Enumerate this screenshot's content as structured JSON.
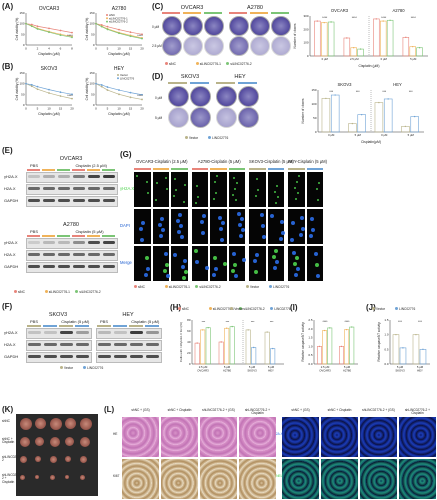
{
  "panels": {
    "A": "(A)",
    "B": "(B)",
    "C": "(C)",
    "D": "(D)",
    "E": "(E)",
    "F": "(F)",
    "G": "(G)",
    "H": "(H)",
    "I": "(I)",
    "J": "(J)",
    "K": "(K)",
    "L": "(L)"
  },
  "A": {
    "charts": [
      {
        "title": "OVCAR3",
        "ylabel": "Cell viability (%)",
        "xlabel": "Cisplatin (μM)",
        "xticks": [
          "0",
          "2",
          "4",
          "6",
          "8"
        ],
        "yticks": [
          "0",
          "50",
          "100",
          "150"
        ]
      },
      {
        "title": "A2780",
        "ylabel": "Cell viability (%)",
        "xlabel": "Cisplatin (μM)",
        "xticks": [
          "0",
          "5",
          "10",
          "15",
          "20"
        ],
        "yticks": [
          "0",
          "50",
          "100",
          "150"
        ]
      }
    ],
    "legend": [
      "siNC",
      "siLINC02776-1",
      "siLINC02776-2"
    ]
  },
  "B": {
    "charts": [
      {
        "title": "SKOV3",
        "ylabel": "Cell viability (%)",
        "xlabel": "Cisplatin (μM)",
        "xticks": [
          "0",
          "5",
          "10",
          "15",
          "20"
        ],
        "yticks": [
          "0",
          "50",
          "100",
          "150"
        ]
      },
      {
        "title": "HEY",
        "ylabel": "Cell viability (%)",
        "xlabel": "Cisplatin (μM)",
        "xticks": [
          "0",
          "5",
          "10",
          "15",
          "20"
        ],
        "yticks": [
          "0",
          "50",
          "100",
          "150"
        ]
      }
    ],
    "legend": [
      "Vector",
      "LINC02776"
    ]
  },
  "C": {
    "titles": [
      "OVCAR3",
      "A2780"
    ],
    "rowlabels": [
      "0 μM",
      "2.5 μM",
      "0 μM",
      "5 μM"
    ],
    "legend": [
      "siNC",
      "siLINC02776-1",
      "siLINC02776-2"
    ],
    "chart": {
      "title1": "OVCAR3",
      "title2": "A2780",
      "ylabel": "Number of clones",
      "xlabel": "Cisplatin (μM)",
      "xticks": [
        "0 μM",
        "2.5 μM",
        "0 μM",
        "5 μM"
      ],
      "yticks": [
        "0",
        "100",
        "200",
        "300"
      ]
    }
  },
  "D": {
    "titles": [
      "SKOV3",
      "HEY"
    ],
    "rowlabels": [
      "0 μM",
      "5 μM"
    ],
    "legend": [
      "Vector",
      "LINC02776"
    ],
    "chart": {
      "title1": "SKOV3",
      "title2": "HEY",
      "ylabel": "Number of clones",
      "xlabel": "Cisplatin(μM)",
      "xticks": [
        "0 μM",
        "5 μM",
        "0 μM",
        "5 μM"
      ],
      "yticks": [
        "0",
        "50",
        "100",
        "150"
      ]
    }
  },
  "E": {
    "top": {
      "title": "OVCAR3",
      "pbs": "PBS",
      "cis": "Cisplatin (2.5 μM)"
    },
    "bottom": {
      "title": "A2780",
      "pbs": "PBS",
      "cis": "Cisplatin (5 μM)"
    },
    "rows": [
      "γH2A.X",
      "H2A.X",
      "GAPDH"
    ],
    "legend": [
      "siNC",
      "siLINC02776-1",
      "siLINC02776-2"
    ]
  },
  "F": {
    "titles": [
      "SKOV3",
      "HEY"
    ],
    "pbs": "PBS",
    "cis": "Cisplatin (5 μM)",
    "rows": [
      "γH2A.X",
      "H2A.X",
      "GAPDH"
    ],
    "legend": [
      "Vector",
      "LINC02776"
    ]
  },
  "G": {
    "titles": [
      "OVCAR3-Cisplatin (2.5 μM)",
      "A2780-Cisplatin (5 μM)",
      "SKOV3-Cisplatin (5 μM)",
      "HEY-Cisplatin (5 μM)"
    ],
    "rows": [
      "γH2A.X",
      "DAPI",
      "Merge"
    ],
    "legend1": [
      "siNC",
      "siLINC02776-1",
      "siLINC02776-2"
    ],
    "legend2": [
      "Vector",
      "LINC02776"
    ]
  },
  "H": {
    "legend": [
      "siNC",
      "siLINC02776-1",
      "siLINC02776-2",
      "Vector",
      "LINC02776"
    ],
    "ylabel": "Cells with >10γH2A.X foci (%)",
    "xticks": [
      "2.5 μM OVCAR3",
      "5 μM A2780",
      "5 μM SKOV3",
      "5 μM HEY"
    ],
    "yticks": [
      "0",
      "20",
      "40",
      "60",
      "80"
    ]
  },
  "I": {
    "ylabel": "Relative caspase3/7 activity",
    "xticks": [
      "2.5 μM OVCAR3",
      "5 μM A2780"
    ],
    "yticks": [
      "0.0",
      "0.5",
      "1.0",
      "1.5",
      "2.0",
      "2.5"
    ]
  },
  "J": {
    "legend": [
      "Vector",
      "LINC02776"
    ],
    "ylabel": "Relative caspase3/7 activity",
    "xticks": [
      "5 μM SKOV3",
      "5 μM HEY"
    ],
    "yticks": [
      "0.0",
      "0.5",
      "1.0",
      "1.5"
    ]
  },
  "K": {
    "rows": [
      "shNC",
      "shNC + Cisplatin",
      "shLINC02776-2",
      "shLINC02776-2 + Cisplatin"
    ]
  },
  "L": {
    "cols": [
      "shNC + (GS)",
      "shNC + Cisplatin",
      "shLINC02776-2 + (GS)",
      "shLINC02776-2 + Cisplatin"
    ],
    "rows_left": [
      "HE",
      "Ki67"
    ],
    "rows_right": [
      "γH2A.X/DAPI",
      "TUNEL/DAPI"
    ]
  },
  "colors": {
    "siNC": "#e8847a",
    "si1": "#f0b35a",
    "si2": "#7cc576",
    "vector": "#b9b38a",
    "linc": "#6fa3d6",
    "green": "#4cd24c",
    "blue": "#1f5fd0"
  },
  "sig": {
    "s3": "***",
    "s4": "****",
    "s2": "**",
    "s1": "*"
  },
  "chart_data": [
    {
      "type": "line",
      "title": "OVCAR3",
      "xlabel": "Cisplatin (μM)",
      "ylabel": "Cell viability (%)",
      "x": [
        0,
        1,
        2,
        4,
        6,
        8
      ],
      "ylim": [
        0,
        150
      ],
      "series": [
        {
          "name": "siNC",
          "values": [
            100,
            96,
            88,
            78,
            68,
            58
          ]
        },
        {
          "name": "siLINC02776-1",
          "values": [
            100,
            90,
            78,
            63,
            50,
            40
          ]
        },
        {
          "name": "siLINC02776-2",
          "values": [
            100,
            88,
            75,
            60,
            46,
            36
          ]
        }
      ]
    },
    {
      "type": "line",
      "title": "A2780",
      "xlabel": "Cisplatin (μM)",
      "ylabel": "Cell viability (%)",
      "x": [
        0,
        2.5,
        5,
        10,
        15,
        20
      ],
      "ylim": [
        0,
        150
      ],
      "series": [
        {
          "name": "siNC",
          "values": [
            100,
            94,
            86,
            72,
            60,
            50
          ]
        },
        {
          "name": "siLINC02776-1",
          "values": [
            100,
            88,
            76,
            58,
            45,
            33
          ]
        },
        {
          "name": "siLINC02776-2",
          "values": [
            100,
            86,
            73,
            55,
            41,
            30
          ]
        }
      ]
    },
    {
      "type": "line",
      "title": "SKOV3",
      "xlabel": "Cisplatin (μM)",
      "ylabel": "Cell viability (%)",
      "x": [
        0,
        2.5,
        5,
        10,
        15,
        20
      ],
      "ylim": [
        0,
        150
      ],
      "series": [
        {
          "name": "Vector",
          "values": [
            100,
            88,
            74,
            56,
            42,
            30
          ]
        },
        {
          "name": "LINC02776",
          "values": [
            100,
            95,
            86,
            72,
            60,
            50
          ]
        }
      ]
    },
    {
      "type": "line",
      "title": "HEY",
      "xlabel": "Cisplatin (μM)",
      "ylabel": "Cell viability (%)",
      "x": [
        0,
        2.5,
        5,
        10,
        15,
        20
      ],
      "ylim": [
        0,
        150
      ],
      "series": [
        {
          "name": "Vector",
          "values": [
            100,
            86,
            70,
            50,
            36,
            26
          ]
        },
        {
          "name": "LINC02776",
          "values": [
            100,
            94,
            84,
            70,
            58,
            48
          ]
        }
      ]
    },
    {
      "type": "bar",
      "title": "Number of clones",
      "categories": [
        "0 μM",
        "2.5 μM",
        "0 μM",
        "5 μM"
      ],
      "ylim": [
        0,
        300
      ],
      "series": [
        {
          "name": "siNC",
          "values": [
            262,
            135,
            278,
            140
          ]
        },
        {
          "name": "siLINC02776-1",
          "values": [
            250,
            62,
            262,
            70
          ]
        },
        {
          "name": "siLINC02776-2",
          "values": [
            255,
            52,
            268,
            62
          ]
        }
      ]
    },
    {
      "type": "bar",
      "title": "Number of clones",
      "categories": [
        "0 μM",
        "5 μM",
        "0 μM",
        "5 μM"
      ],
      "ylim": [
        0,
        150
      ],
      "series": [
        {
          "name": "Vector",
          "values": [
            120,
            30,
            105,
            20
          ]
        },
        {
          "name": "LINC02776",
          "values": [
            132,
            62,
            118,
            55
          ]
        }
      ]
    },
    {
      "type": "bar",
      "ylabel": "Cells with >10γH2A.X foci (%)",
      "categories": [
        "2.5 μM OVCAR3",
        "5 μM A2780"
      ],
      "ylim": [
        0,
        80
      ],
      "series": [
        {
          "name": "siNC",
          "values": [
            38,
            40
          ]
        },
        {
          "name": "siLINC02776-1",
          "values": [
            62,
            65
          ]
        },
        {
          "name": "siLINC02776-2",
          "values": [
            66,
            68
          ]
        }
      ]
    },
    {
      "type": "bar",
      "ylabel": "Cells with >10γH2A.X foci (%)",
      "categories": [
        "5 μM SKOV3",
        "5 μM HEY"
      ],
      "ylim": [
        0,
        80
      ],
      "series": [
        {
          "name": "Vector",
          "values": [
            62,
            58
          ]
        },
        {
          "name": "LINC02776",
          "values": [
            30,
            28
          ]
        }
      ]
    },
    {
      "type": "bar",
      "ylabel": "Relative caspase3/7 activity",
      "categories": [
        "2.5 μM OVCAR3",
        "5 μM A2780"
      ],
      "ylim": [
        0,
        2.5
      ],
      "series": [
        {
          "name": "siNC",
          "values": [
            1.0,
            1.0
          ]
        },
        {
          "name": "siLINC02776-1",
          "values": [
            1.9,
            1.95
          ]
        },
        {
          "name": "siLINC02776-2",
          "values": [
            2.05,
            2.1
          ]
        }
      ]
    },
    {
      "type": "bar",
      "ylabel": "Relative caspase3/7 activity",
      "categories": [
        "5 μM SKOV3",
        "5 μM HEY"
      ],
      "ylim": [
        0,
        1.5
      ],
      "series": [
        {
          "name": "Vector",
          "values": [
            1.0,
            1.0
          ]
        },
        {
          "name": "LINC02776",
          "values": [
            0.55,
            0.5
          ]
        }
      ]
    }
  ]
}
